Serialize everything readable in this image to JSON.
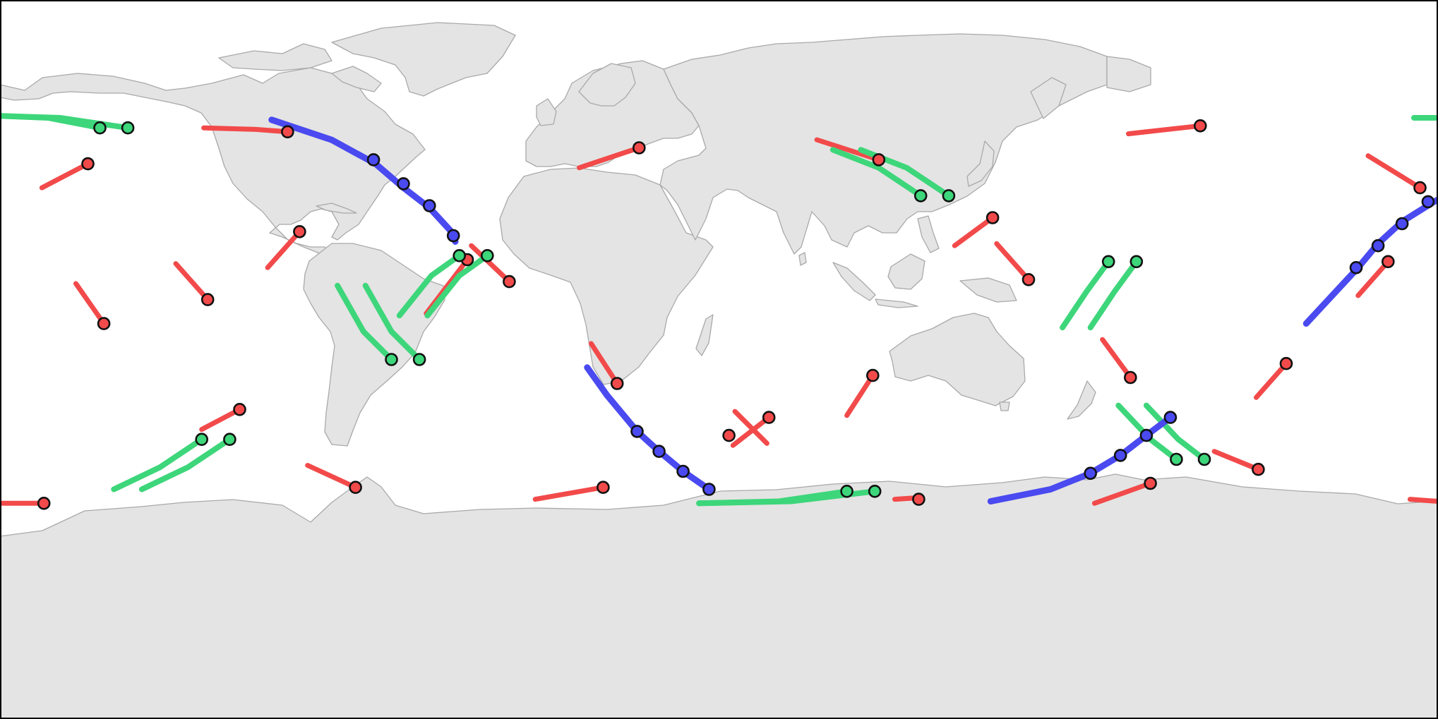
{
  "map": {
    "projection": "equirectangular",
    "extent": {
      "lon": [
        -180,
        180
      ],
      "lat": [
        -90,
        90
      ]
    },
    "land_color": "#e4e4e4",
    "coast_color": "#a9a9a9",
    "ocean_color": "#ffffff",
    "frame_color": "#000000"
  },
  "legend": [],
  "colors": {
    "red": "#f24a4a",
    "green": "#3dd67a",
    "blue": "#4a4af0"
  },
  "tracks": [
    {
      "color": "red",
      "width": 7,
      "points": [
        [
          -169.5,
          43
        ],
        [
          -158,
          49
        ]
      ],
      "markers": [
        [
          -158,
          49
        ]
      ]
    },
    {
      "color": "red",
      "width": 7,
      "points": [
        [
          -161,
          19
        ],
        [
          -154,
          9
        ]
      ],
      "markers": [
        [
          -154,
          9
        ]
      ]
    },
    {
      "color": "red",
      "width": 7,
      "points": [
        [
          -136,
          24
        ],
        [
          -128,
          15
        ]
      ],
      "markers": [
        [
          -128,
          15
        ]
      ]
    },
    {
      "color": "red",
      "width": 7,
      "points": [
        [
          -113,
          23
        ],
        [
          -105,
          32
        ]
      ],
      "markers": [
        [
          -105,
          32
        ]
      ]
    },
    {
      "color": "red",
      "width": 7,
      "points": [
        [
          -129,
          58
        ],
        [
          -116,
          57.6
        ],
        [
          -108,
          57
        ]
      ],
      "markers": [
        [
          -108,
          57
        ]
      ]
    },
    {
      "color": "red",
      "width": 7,
      "points": [
        [
          -129.5,
          -17.5
        ],
        [
          -120,
          -12.5
        ]
      ],
      "markers": [
        [
          -120,
          -12.5
        ]
      ]
    },
    {
      "color": "red",
      "width": 7,
      "points": [
        [
          -103,
          -26.5
        ],
        [
          -91,
          -32
        ]
      ],
      "markers": [
        [
          -91,
          -32
        ]
      ]
    },
    {
      "color": "red",
      "width": 7,
      "points": [
        [
          -180,
          -36
        ],
        [
          -169,
          -36
        ]
      ],
      "markers": [
        [
          -169,
          -36
        ]
      ]
    },
    {
      "color": "red",
      "width": 7,
      "points": [
        [
          -73.3,
          11.5
        ],
        [
          -63,
          25
        ]
      ],
      "markers": [
        [
          -63,
          25
        ]
      ]
    },
    {
      "color": "red",
      "width": 7,
      "points": [
        [
          -62,
          28.5
        ],
        [
          -52.5,
          19.5
        ]
      ],
      "markers": [
        [
          -52.5,
          19.5
        ]
      ]
    },
    {
      "color": "red",
      "width": 7,
      "points": [
        [
          -35,
          48
        ],
        [
          -20,
          53
        ]
      ],
      "markers": [
        [
          -20,
          53
        ]
      ]
    },
    {
      "color": "red",
      "width": 7,
      "points": [
        [
          -32,
          4
        ],
        [
          -25.5,
          -6
        ]
      ],
      "markers": [
        [
          -25.5,
          -6
        ]
      ]
    },
    {
      "color": "red",
      "width": 7,
      "points": [
        [
          -46,
          -35
        ],
        [
          -29,
          -32
        ]
      ],
      "markers": [
        [
          -29,
          -32
        ]
      ]
    },
    {
      "color": "red",
      "width": 7,
      "points": [
        [
          4,
          -13
        ],
        [
          12,
          -21
        ]
      ],
      "markers": [
        [
          2.5,
          -19
        ]
      ]
    },
    {
      "color": "red",
      "width": 7,
      "points": [
        [
          3.5,
          -21.5
        ],
        [
          12.5,
          -14.5
        ]
      ],
      "markers": [
        [
          12.5,
          -14.5
        ]
      ]
    },
    {
      "color": "red",
      "width": 7,
      "points": [
        [
          44,
          -35
        ],
        [
          50,
          -34.6
        ],
        [
          50,
          -34.6
        ],
        [
          50,
          -34.6
        ]
      ],
      "markers": [
        [
          50,
          -35
        ]
      ]
    },
    {
      "color": "red",
      "width": 7,
      "points": [
        [
          32,
          -14
        ],
        [
          38.5,
          -4
        ]
      ],
      "markers": [
        [
          38.5,
          -4
        ]
      ]
    },
    {
      "color": "red",
      "width": 7,
      "points": [
        [
          24.5,
          55
        ],
        [
          40,
          50
        ]
      ],
      "markers": [
        [
          40,
          50
        ]
      ]
    },
    {
      "color": "red",
      "width": 7,
      "points": [
        [
          59,
          28.5
        ],
        [
          68.5,
          35.5
        ]
      ],
      "markers": [
        [
          68.5,
          35.5
        ]
      ]
    },
    {
      "color": "red",
      "width": 7,
      "points": [
        [
          69.5,
          29
        ],
        [
          77.5,
          20
        ]
      ],
      "markers": [
        [
          77.5,
          20
        ]
      ]
    },
    {
      "color": "red",
      "width": 7,
      "points": [
        [
          102.5,
          56.5
        ],
        [
          120.5,
          58.5
        ]
      ],
      "markers": [
        [
          120.5,
          58.5
        ]
      ]
    },
    {
      "color": "red",
      "width": 7,
      "points": [
        [
          96,
          5
        ],
        [
          103,
          -4.5
        ]
      ],
      "markers": [
        [
          103,
          -4.5
        ]
      ]
    },
    {
      "color": "red",
      "width": 7,
      "points": [
        [
          94,
          -36
        ],
        [
          108,
          -31
        ]
      ],
      "markers": [
        [
          108,
          -31
        ]
      ]
    },
    {
      "color": "red",
      "width": 7,
      "points": [
        [
          124,
          -23
        ],
        [
          135,
          -27.5
        ]
      ],
      "markers": [
        [
          135,
          -27.5
        ]
      ]
    },
    {
      "color": "red",
      "width": 7,
      "points": [
        [
          134.5,
          -9.5
        ],
        [
          142,
          -1
        ]
      ],
      "markers": [
        [
          142,
          -1
        ]
      ]
    },
    {
      "color": "red",
      "width": 7,
      "points": [
        [
          162.5,
          51
        ],
        [
          175.5,
          43
        ]
      ],
      "markers": [
        [
          175.5,
          43
        ]
      ]
    },
    {
      "color": "red",
      "width": 7,
      "points": [
        [
          160,
          16
        ],
        [
          167.5,
          24.5
        ]
      ],
      "markers": [
        [
          167.5,
          24.5
        ]
      ]
    },
    {
      "color": "red",
      "width": 7,
      "points": [
        [
          173,
          -35
        ],
        [
          180,
          -35.5
        ]
      ],
      "markers": []
    },
    {
      "color": "green",
      "width": 8,
      "points": [
        [
          -180,
          61
        ],
        [
          -168,
          60.5
        ],
        [
          -155,
          58
        ]
      ],
      "markers": [
        [
          -155,
          58
        ]
      ]
    },
    {
      "color": "green",
      "width": 8,
      "points": [
        [
          -180,
          61
        ],
        [
          -165,
          60.5
        ],
        [
          -148,
          58
        ]
      ],
      "markers": [
        [
          -148,
          58
        ]
      ]
    },
    {
      "color": "green",
      "width": 8,
      "points": [
        [
          -95.5,
          18.5
        ],
        [
          -89,
          7
        ],
        [
          -82,
          0
        ]
      ],
      "markers": [
        [
          -82,
          0
        ]
      ]
    },
    {
      "color": "green",
      "width": 8,
      "points": [
        [
          -88.5,
          18.5
        ],
        [
          -82,
          7
        ],
        [
          -75,
          0
        ]
      ],
      "markers": [
        [
          -75,
          0
        ]
      ]
    },
    {
      "color": "green",
      "width": 8,
      "points": [
        [
          -80,
          11
        ],
        [
          -72,
          21
        ],
        [
          -65,
          26
        ]
      ],
      "markers": [
        [
          -65,
          26
        ]
      ]
    },
    {
      "color": "green",
      "width": 8,
      "points": [
        [
          -73,
          11
        ],
        [
          -65,
          21
        ],
        [
          -58,
          26
        ]
      ],
      "markers": [
        [
          -58,
          26
        ]
      ]
    },
    {
      "color": "green",
      "width": 8,
      "points": [
        [
          -151.5,
          -32.5
        ],
        [
          -140,
          -27
        ],
        [
          -129.5,
          -20
        ]
      ],
      "markers": [
        [
          -129.5,
          -20
        ]
      ]
    },
    {
      "color": "green",
      "width": 8,
      "points": [
        [
          -144.5,
          -32.5
        ],
        [
          -133,
          -27
        ],
        [
          -122.5,
          -20
        ]
      ],
      "markers": [
        [
          -122.5,
          -20
        ]
      ]
    },
    {
      "color": "green",
      "width": 8,
      "points": [
        [
          -5,
          -36
        ],
        [
          15,
          -35.5
        ],
        [
          32,
          -33
        ]
      ],
      "markers": [
        [
          32,
          -33
        ]
      ]
    },
    {
      "color": "green",
      "width": 8,
      "points": [
        [
          -5,
          -36
        ],
        [
          18,
          -35.5
        ],
        [
          39,
          -33
        ]
      ],
      "markers": [
        [
          39,
          -33
        ]
      ]
    },
    {
      "color": "green",
      "width": 8,
      "points": [
        [
          28.5,
          52.5
        ],
        [
          40,
          48
        ],
        [
          50.5,
          41
        ]
      ],
      "markers": [
        [
          50.5,
          41
        ]
      ]
    },
    {
      "color": "green",
      "width": 8,
      "points": [
        [
          35.5,
          52.5
        ],
        [
          47,
          48
        ],
        [
          57.5,
          41
        ]
      ],
      "markers": [
        [
          57.5,
          41
        ]
      ]
    },
    {
      "color": "green",
      "width": 8,
      "points": [
        [
          86,
          8
        ],
        [
          92,
          17
        ],
        [
          97.5,
          24.5
        ]
      ],
      "markers": [
        [
          97.5,
          24.5
        ]
      ]
    },
    {
      "color": "green",
      "width": 8,
      "points": [
        [
          93,
          8
        ],
        [
          99,
          17
        ],
        [
          104.5,
          24.5
        ]
      ],
      "markers": [
        [
          104.5,
          24.5
        ]
      ]
    },
    {
      "color": "green",
      "width": 8,
      "points": [
        [
          100,
          -11.5
        ],
        [
          108,
          -20
        ],
        [
          114.5,
          -25
        ]
      ],
      "markers": [
        [
          114.5,
          -25
        ]
      ]
    },
    {
      "color": "green",
      "width": 8,
      "points": [
        [
          107,
          -11.5
        ],
        [
          115,
          -20
        ],
        [
          121.5,
          -25
        ]
      ],
      "markers": [
        [
          121.5,
          -25
        ]
      ]
    },
    {
      "color": "green",
      "width": 8,
      "points": [
        [
          174,
          60.5
        ],
        [
          180,
          60.5
        ]
      ],
      "markers": []
    },
    {
      "color": "blue",
      "width": 9,
      "points": [
        [
          -112,
          60
        ],
        [
          -97,
          55
        ],
        [
          -86,
          49
        ],
        [
          -79,
          43
        ],
        [
          -72.5,
          38
        ],
        [
          -67,
          32
        ],
        [
          -66,
          29.5
        ]
      ],
      "markers": [
        [
          -86.5,
          50
        ],
        [
          -79,
          44
        ],
        [
          -72.5,
          38.5
        ],
        [
          -66.5,
          31
        ]
      ]
    },
    {
      "color": "blue",
      "width": 9,
      "points": [
        [
          -33,
          -2
        ],
        [
          -28,
          -9
        ],
        [
          -20.5,
          -18
        ],
        [
          -15,
          -23
        ],
        [
          -9,
          -28
        ],
        [
          -2.5,
          -32.5
        ]
      ],
      "markers": [
        [
          -20.5,
          -18
        ],
        [
          -15,
          -23
        ],
        [
          -9,
          -28
        ],
        [
          -2.5,
          -32.5
        ]
      ]
    },
    {
      "color": "blue",
      "width": 9,
      "points": [
        [
          68,
          -35.5
        ],
        [
          83,
          -32.5
        ],
        [
          93,
          -28.5
        ],
        [
          100.5,
          -24
        ],
        [
          107,
          -19
        ],
        [
          113,
          -14.5
        ]
      ],
      "markers": [
        [
          93,
          -28.5
        ],
        [
          100.5,
          -24
        ],
        [
          107,
          -19
        ],
        [
          113,
          -14.5
        ]
      ]
    },
    {
      "color": "blue",
      "width": 9,
      "points": [
        [
          147,
          9
        ],
        [
          160,
          23
        ],
        [
          165,
          29
        ],
        [
          171,
          34.5
        ],
        [
          179,
          39.5
        ],
        [
          180,
          40
        ]
      ],
      "markers": [
        [
          159.5,
          23
        ],
        [
          165,
          28.5
        ],
        [
          171,
          34
        ],
        [
          177.5,
          39.5
        ]
      ]
    }
  ]
}
